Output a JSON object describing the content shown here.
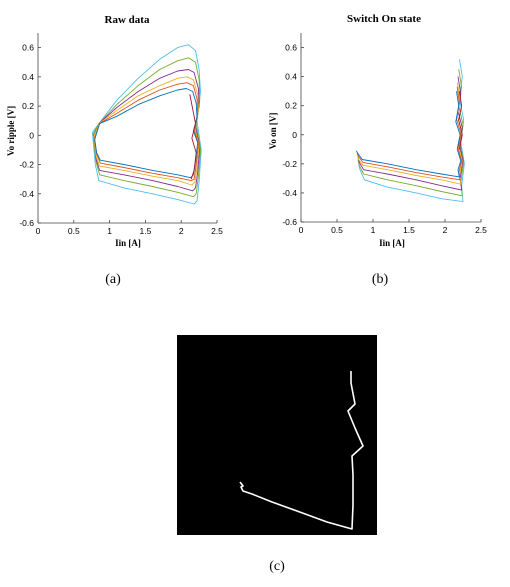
{
  "figure": {
    "captions": [
      "(a)",
      "(b)",
      "(c)"
    ]
  },
  "chart_data": [
    {
      "type": "line",
      "title": "Raw data",
      "xlabel": "Iin [A]",
      "ylabel": "Vo ripple [V]",
      "xlim": [
        0,
        2.5
      ],
      "ylim": [
        -0.6,
        0.7
      ],
      "xticks": [
        0,
        0.5,
        1,
        1.5,
        2,
        2.5
      ],
      "xtick_labels": [
        "0",
        "0.5",
        "1",
        "1.5",
        "2",
        "2.5"
      ],
      "yticks": [
        -0.6,
        -0.4,
        -0.2,
        0,
        0.2,
        0.4,
        0.6
      ],
      "ytick_labels": [
        "-0.6",
        "-0.4",
        "-0.2",
        "0",
        "0.2",
        "0.4",
        "0.6"
      ],
      "grid": false,
      "series": [
        {
          "color": "#4DBEEE",
          "x": [
            0.76,
            0.85,
            1.1,
            1.4,
            1.7,
            1.95,
            2.1,
            2.2,
            2.25,
            2.27,
            2.22,
            2.28,
            2.25,
            2.22,
            2.18,
            1.95,
            1.6,
            1.2,
            0.85,
            0.8,
            0.76
          ],
          "y": [
            0.02,
            0.08,
            0.24,
            0.39,
            0.52,
            0.6,
            0.62,
            0.58,
            0.45,
            0.3,
            0.1,
            -0.1,
            -0.32,
            -0.45,
            -0.47,
            -0.44,
            -0.4,
            -0.36,
            -0.31,
            -0.2,
            0.02
          ]
        },
        {
          "color": "#77AC30",
          "x": [
            0.77,
            0.85,
            1.1,
            1.4,
            1.7,
            1.95,
            2.1,
            2.2,
            2.25,
            2.26,
            2.21,
            2.27,
            2.24,
            2.21,
            2.17,
            1.95,
            1.6,
            1.2,
            0.86,
            0.81,
            0.77
          ],
          "y": [
            0.01,
            0.08,
            0.21,
            0.34,
            0.45,
            0.51,
            0.53,
            0.5,
            0.38,
            0.24,
            0.08,
            -0.1,
            -0.28,
            -0.4,
            -0.42,
            -0.39,
            -0.35,
            -0.31,
            -0.27,
            -0.18,
            0.01
          ]
        },
        {
          "color": "#7E2F8E",
          "x": [
            0.78,
            0.85,
            1.1,
            1.4,
            1.7,
            1.95,
            2.1,
            2.18,
            2.24,
            2.25,
            2.2,
            2.26,
            2.23,
            2.2,
            2.16,
            1.95,
            1.6,
            1.2,
            0.86,
            0.81,
            0.78
          ],
          "y": [
            0.0,
            0.08,
            0.19,
            0.3,
            0.39,
            0.44,
            0.45,
            0.43,
            0.32,
            0.2,
            0.06,
            -0.08,
            -0.25,
            -0.36,
            -0.38,
            -0.35,
            -0.31,
            -0.27,
            -0.24,
            -0.16,
            0.0
          ]
        },
        {
          "color": "#EDB120",
          "x": [
            0.78,
            0.85,
            1.1,
            1.4,
            1.7,
            1.95,
            2.08,
            2.17,
            2.23,
            2.24,
            2.19,
            2.25,
            2.22,
            2.19,
            2.15,
            1.95,
            1.6,
            1.2,
            0.86,
            0.81,
            0.78
          ],
          "y": [
            -0.01,
            0.08,
            0.17,
            0.27,
            0.34,
            0.39,
            0.4,
            0.38,
            0.28,
            0.17,
            0.05,
            -0.07,
            -0.22,
            -0.32,
            -0.34,
            -0.31,
            -0.28,
            -0.24,
            -0.21,
            -0.14,
            -0.01
          ]
        },
        {
          "color": "#D95319",
          "x": [
            0.79,
            0.86,
            1.1,
            1.4,
            1.7,
            1.95,
            2.08,
            2.17,
            2.22,
            2.23,
            2.18,
            2.24,
            2.21,
            2.18,
            2.14,
            1.95,
            1.6,
            1.2,
            0.87,
            0.82,
            0.79
          ],
          "y": [
            -0.02,
            0.08,
            0.15,
            0.24,
            0.31,
            0.35,
            0.36,
            0.34,
            0.25,
            0.15,
            0.04,
            -0.06,
            -0.2,
            -0.3,
            -0.31,
            -0.29,
            -0.26,
            -0.22,
            -0.19,
            -0.13,
            -0.02
          ]
        },
        {
          "color": "#0072BD",
          "x": [
            0.79,
            0.86,
            1.1,
            1.4,
            1.7,
            1.95,
            2.07,
            2.16,
            2.21,
            2.22,
            2.17,
            2.23,
            2.2,
            2.17,
            2.13,
            1.95,
            1.6,
            1.2,
            0.87,
            0.82,
            0.79
          ],
          "y": [
            -0.03,
            0.08,
            0.13,
            0.21,
            0.27,
            0.31,
            0.32,
            0.3,
            0.22,
            0.12,
            0.03,
            -0.05,
            -0.18,
            -0.27,
            -0.29,
            -0.27,
            -0.24,
            -0.2,
            -0.17,
            -0.12,
            -0.03
          ]
        },
        {
          "color": "#A2142F",
          "x": [
            2.12,
            2.16,
            2.2,
            2.15,
            2.21,
            2.18,
            2.14
          ],
          "y": [
            0.28,
            0.18,
            0.08,
            -0.02,
            -0.12,
            -0.24,
            -0.3
          ]
        }
      ]
    },
    {
      "type": "line",
      "title": "Switch On state",
      "xlabel": "Iin [A]",
      "ylabel": "Vo on [V]",
      "xlim": [
        0,
        2.5
      ],
      "ylim": [
        -0.6,
        0.7
      ],
      "xticks": [
        0,
        0.5,
        1,
        1.5,
        2,
        2.5
      ],
      "xtick_labels": [
        "0",
        "0.5",
        "1",
        "1.5",
        "2",
        "2.5"
      ],
      "yticks": [
        -0.6,
        -0.4,
        -0.2,
        0,
        0.2,
        0.4,
        0.6
      ],
      "ytick_labels": [
        "-0.6",
        "-0.4",
        "-0.2",
        "0",
        "0.2",
        "0.4",
        "0.6"
      ],
      "grid": false,
      "series": [
        {
          "color": "#4DBEEE",
          "x": [
            2.2,
            2.24,
            2.2,
            2.26,
            2.22,
            2.27,
            2.23,
            2.25,
            1.95,
            1.6,
            1.2,
            0.88,
            0.82,
            0.8
          ],
          "y": [
            0.52,
            0.4,
            0.25,
            0.1,
            -0.05,
            -0.2,
            -0.35,
            -0.46,
            -0.44,
            -0.4,
            -0.36,
            -0.31,
            -0.24,
            -0.2
          ]
        },
        {
          "color": "#77AC30",
          "x": [
            2.19,
            2.23,
            2.19,
            2.25,
            2.21,
            2.26,
            2.22,
            2.24,
            1.95,
            1.6,
            1.2,
            0.87,
            0.81,
            0.79
          ],
          "y": [
            0.45,
            0.33,
            0.2,
            0.07,
            -0.06,
            -0.19,
            -0.32,
            -0.42,
            -0.39,
            -0.35,
            -0.31,
            -0.27,
            -0.21,
            -0.17
          ]
        },
        {
          "color": "#7E2F8E",
          "x": [
            2.18,
            2.22,
            2.18,
            2.24,
            2.2,
            2.25,
            2.21,
            2.23,
            1.95,
            1.6,
            1.2,
            0.87,
            0.81,
            0.79
          ],
          "y": [
            0.4,
            0.28,
            0.16,
            0.05,
            -0.07,
            -0.18,
            -0.3,
            -0.38,
            -0.35,
            -0.31,
            -0.27,
            -0.24,
            -0.19,
            -0.15
          ]
        },
        {
          "color": "#EDB120",
          "x": [
            2.17,
            2.21,
            2.17,
            2.23,
            2.19,
            2.24,
            2.2,
            2.22,
            1.95,
            1.6,
            1.2,
            0.86,
            0.8,
            0.78
          ],
          "y": [
            0.36,
            0.25,
            0.13,
            0.03,
            -0.08,
            -0.18,
            -0.28,
            -0.34,
            -0.31,
            -0.28,
            -0.24,
            -0.21,
            -0.17,
            -0.13
          ]
        },
        {
          "color": "#D95319",
          "x": [
            2.17,
            2.2,
            2.16,
            2.22,
            2.18,
            2.23,
            2.19,
            2.21,
            1.95,
            1.6,
            1.2,
            0.86,
            0.8,
            0.78
          ],
          "y": [
            0.33,
            0.22,
            0.11,
            0.01,
            -0.09,
            -0.18,
            -0.26,
            -0.31,
            -0.29,
            -0.26,
            -0.22,
            -0.19,
            -0.15,
            -0.12
          ]
        },
        {
          "color": "#0072BD",
          "x": [
            2.16,
            2.19,
            2.15,
            2.21,
            2.17,
            2.22,
            2.18,
            2.2,
            1.95,
            1.6,
            1.2,
            0.85,
            0.79,
            0.77
          ],
          "y": [
            0.3,
            0.2,
            0.09,
            0.0,
            -0.1,
            -0.18,
            -0.24,
            -0.29,
            -0.27,
            -0.24,
            -0.2,
            -0.17,
            -0.13,
            -0.11
          ]
        },
        {
          "color": "#A2142F",
          "x": [
            2.2,
            2.23,
            2.19,
            2.24,
            2.2
          ],
          "y": [
            0.3,
            0.2,
            0.1,
            0.0,
            -0.1
          ]
        }
      ]
    },
    {
      "type": "line",
      "title": "",
      "xlabel": "",
      "ylabel": "",
      "background": "#000000",
      "line_color": "#ffffff",
      "xlim": [
        0,
        200
      ],
      "ylim": [
        0,
        200
      ],
      "series": [
        {
          "color": "#ffffff",
          "x": [
            174,
            174,
            178,
            171,
            178,
            186,
            175,
            176,
            176,
            175,
            150,
            120,
            95,
            75,
            66,
            64,
            66,
            63
          ],
          "y": [
            164,
            152,
            131,
            124,
            107,
            89,
            79,
            60,
            30,
            6,
            13,
            24,
            33,
            41,
            44,
            48,
            49,
            53
          ]
        }
      ]
    }
  ]
}
